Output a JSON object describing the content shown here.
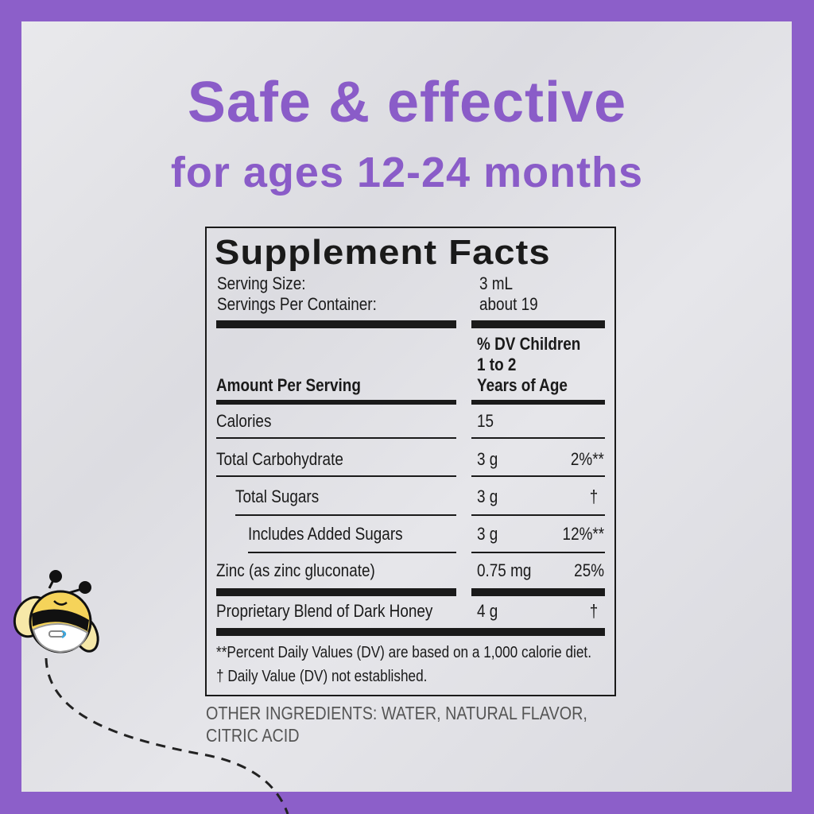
{
  "headline": {
    "line1": "Safe & effective",
    "line2": "for ages 12-24 months"
  },
  "colors": {
    "border": "#8c5fc9",
    "headline": "#8a5cc8",
    "text": "#1a1a1a"
  },
  "label": {
    "title": "Supplement Facts",
    "serving_size_label": "Serving Size:",
    "serving_size": "3 mL",
    "servings_label": "Servings Per Container:",
    "servings": "about 19",
    "amount_header": "Amount Per Serving",
    "dv_header": [
      "% DV Children",
      "1 to 2",
      "Years of Age"
    ],
    "rows": [
      {
        "name": "Calories",
        "amount": "15",
        "dv": ""
      },
      {
        "name": "Total Carbohydrate",
        "amount": "3 g",
        "dv": "2%**"
      },
      {
        "name": "Total Sugars",
        "amount": "3 g",
        "dv": "†"
      },
      {
        "name": "Includes Added Sugars",
        "amount": "3 g",
        "dv": "12%**"
      },
      {
        "name": "Zinc (as zinc gluconate)",
        "amount": "0.75 mg",
        "dv": "25%"
      },
      {
        "name": "Proprietary Blend of Dark Honey",
        "amount": "4 g",
        "dv": "†"
      }
    ],
    "footnotes": [
      "**Percent Daily Values (DV) are based on a 1,000 calorie diet.",
      "† Daily Value (DV) not established."
    ]
  },
  "other_ingredients": [
    "OTHER INGREDIENTS: WATER, NATURAL FLAVOR,",
    "CITRIC ACID"
  ],
  "mascot": "bee-mascot-icon"
}
